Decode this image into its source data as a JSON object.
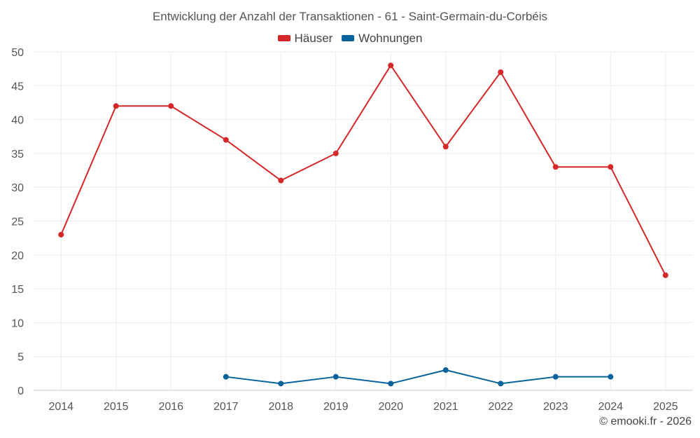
{
  "chart_data": {
    "type": "line",
    "title": "Entwicklung der Anzahl der Transaktionen - 61 - Saint-Germain-du-Corbéis",
    "xlabel": "",
    "ylabel": "",
    "categories": [
      "2014",
      "2015",
      "2016",
      "2017",
      "2018",
      "2019",
      "2020",
      "2021",
      "2022",
      "2023",
      "2024",
      "2025"
    ],
    "ylim": [
      0,
      50
    ],
    "yticks": [
      0,
      5,
      10,
      15,
      20,
      25,
      30,
      35,
      40,
      45,
      50
    ],
    "grid": true,
    "legend_position": "top-center",
    "series": [
      {
        "name": "Häuser",
        "color": "#d62728",
        "values": [
          23,
          42,
          42,
          37,
          31,
          35,
          48,
          36,
          47,
          33,
          33,
          17
        ]
      },
      {
        "name": "Wohnungen",
        "color": "#08639c",
        "values": [
          null,
          null,
          null,
          2,
          1,
          2,
          1,
          3,
          1,
          2,
          2,
          null
        ]
      }
    ]
  },
  "credit": "© emooki.fr - 2026"
}
